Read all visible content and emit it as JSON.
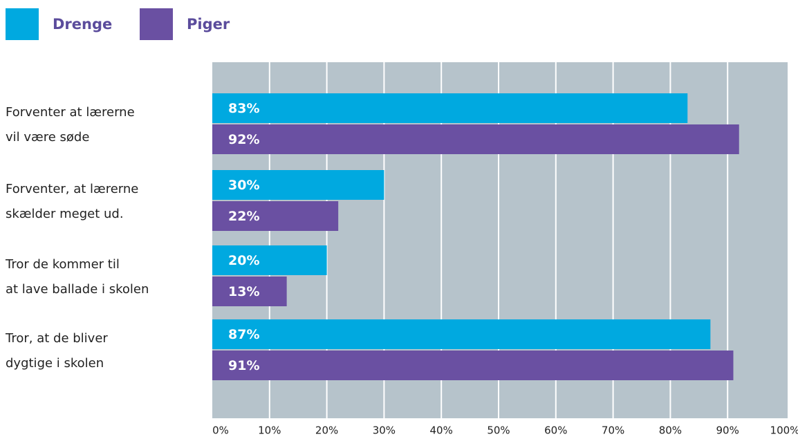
{
  "chart_data": {
    "type": "bar",
    "orientation": "horizontal",
    "categories": [
      [
        "Forventer at lærerne",
        "vil være søde"
      ],
      [
        "Forventer, at lærerne",
        "skælder meget ud."
      ],
      [
        "Tror de kommer til",
        "at lave ballade i skolen"
      ],
      [
        "Tror, at de bliver",
        "dygtige i skolen"
      ]
    ],
    "series": [
      {
        "name": "Drenge",
        "color": "#00a9e0",
        "values": [
          83,
          30,
          20,
          87
        ],
        "value_labels": [
          "83%",
          "30%",
          "20%",
          "87%"
        ]
      },
      {
        "name": "Piger",
        "color": "#6a50a2",
        "values": [
          92,
          22,
          13,
          91
        ],
        "value_labels": [
          "92%",
          "22%",
          "13%",
          "91%"
        ]
      }
    ],
    "xlim": [
      0,
      100
    ],
    "xticks": [
      {
        "value": 0,
        "label": "0%"
      },
      {
        "value": 10,
        "label": "10%"
      },
      {
        "value": 20,
        "label": "20%"
      },
      {
        "value": 30,
        "label": "30%"
      },
      {
        "value": 40,
        "label": "40%"
      },
      {
        "value": 50,
        "label": "50%"
      },
      {
        "value": 60,
        "label": "60%"
      },
      {
        "value": 70,
        "label": "70%"
      },
      {
        "value": 80,
        "label": "80%"
      },
      {
        "value": 90,
        "label": "90%"
      },
      {
        "value": 100,
        "label": "100%"
      }
    ],
    "grid": true,
    "legend": "top-left"
  }
}
